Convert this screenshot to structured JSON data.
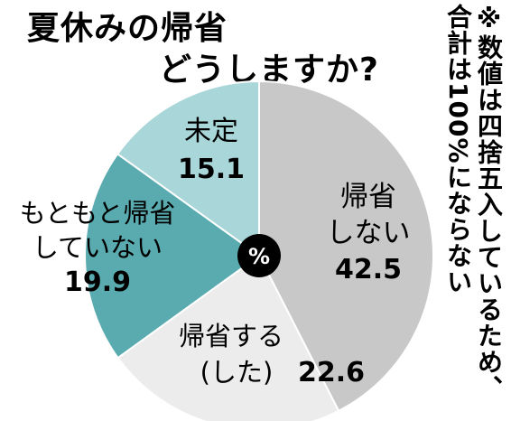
{
  "chart_data": {
    "type": "pie",
    "title_lines": [
      "夏休みの帰省",
      "どうしますか?"
    ],
    "center_label": "%",
    "note": "※数値は四捨五入しているため、合計は100%にならない",
    "slices": [
      {
        "label_lines": [
          "帰省",
          "しない"
        ],
        "value": 42.5,
        "value_text": "42.5",
        "color": "#c8c8c8"
      },
      {
        "label_lines": [
          "帰省する",
          "(した)"
        ],
        "value": 22.6,
        "value_text": "22.6",
        "color": "#ececec"
      },
      {
        "label_lines": [
          "もともと帰省",
          "していない"
        ],
        "value": 19.9,
        "value_text": "19.9",
        "color": "#5aabb0"
      },
      {
        "label_lines": [
          "未定"
        ],
        "value": 15.1,
        "value_text": "15.1",
        "color": "#a9d6d9"
      }
    ]
  }
}
